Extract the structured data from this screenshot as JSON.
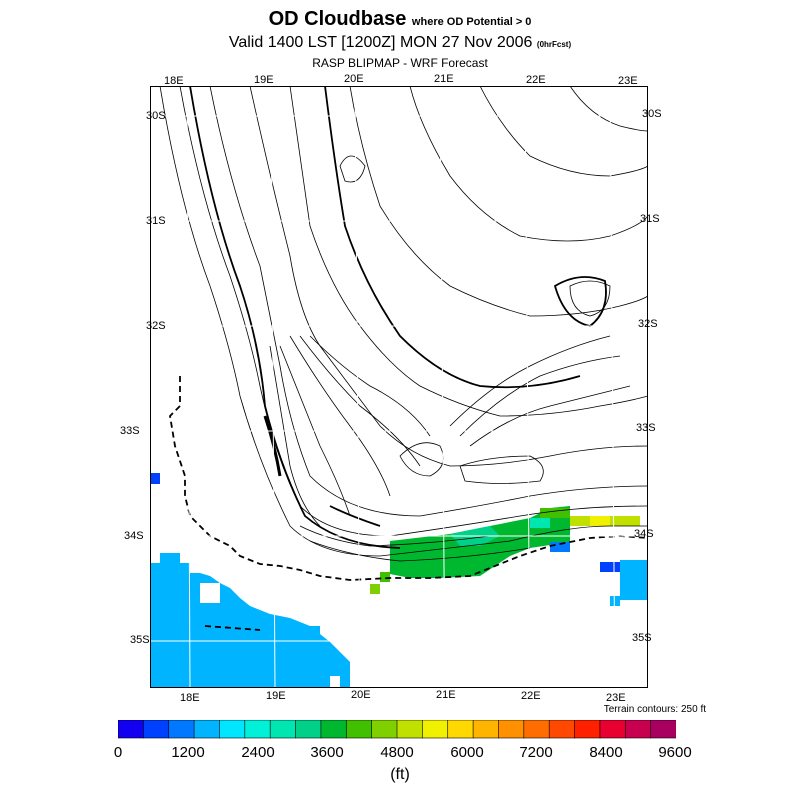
{
  "title": {
    "main": "OD Cloudbase",
    "main_suffix": "where OD Potential > 0",
    "valid": "Valid 1400 LST [1200Z] MON 27 Nov 2006",
    "valid_suffix": "(0hrFcst)",
    "source": "RASP BLIPMAP - WRF Forecast"
  },
  "map": {
    "top_lon_labels": [
      "18E",
      "19E",
      "20E",
      "21E",
      "22E",
      "23E"
    ],
    "bottom_lon_labels": [
      "18E",
      "19E",
      "20E",
      "21E",
      "22E",
      "23E"
    ],
    "left_lat_labels": [
      "30S",
      "31S",
      "32S",
      "33S",
      "34S",
      "35S"
    ],
    "right_lat_labels": [
      "30S",
      "31S",
      "32S",
      "33S",
      "34S",
      "35S"
    ],
    "terrain_note": "Terrain contours: 250 ft",
    "ocean_color": "#00b4ff",
    "land_color": "#ffffff"
  },
  "colorbar": {
    "labels": [
      "0",
      "1200",
      "2400",
      "3600",
      "4800",
      "6000",
      "7200",
      "8400",
      "9600"
    ],
    "units": "(ft)",
    "colors": [
      "#1400f0",
      "#0040ff",
      "#0078ff",
      "#00b4ff",
      "#00e6ff",
      "#00f0d8",
      "#00e6b0",
      "#00d088",
      "#00b830",
      "#40c000",
      "#80d000",
      "#c0e000",
      "#f0f000",
      "#ffd800",
      "#ffb400",
      "#ff9000",
      "#ff6c00",
      "#ff4800",
      "#ff2000",
      "#e80030",
      "#c80050",
      "#a80060"
    ]
  }
}
